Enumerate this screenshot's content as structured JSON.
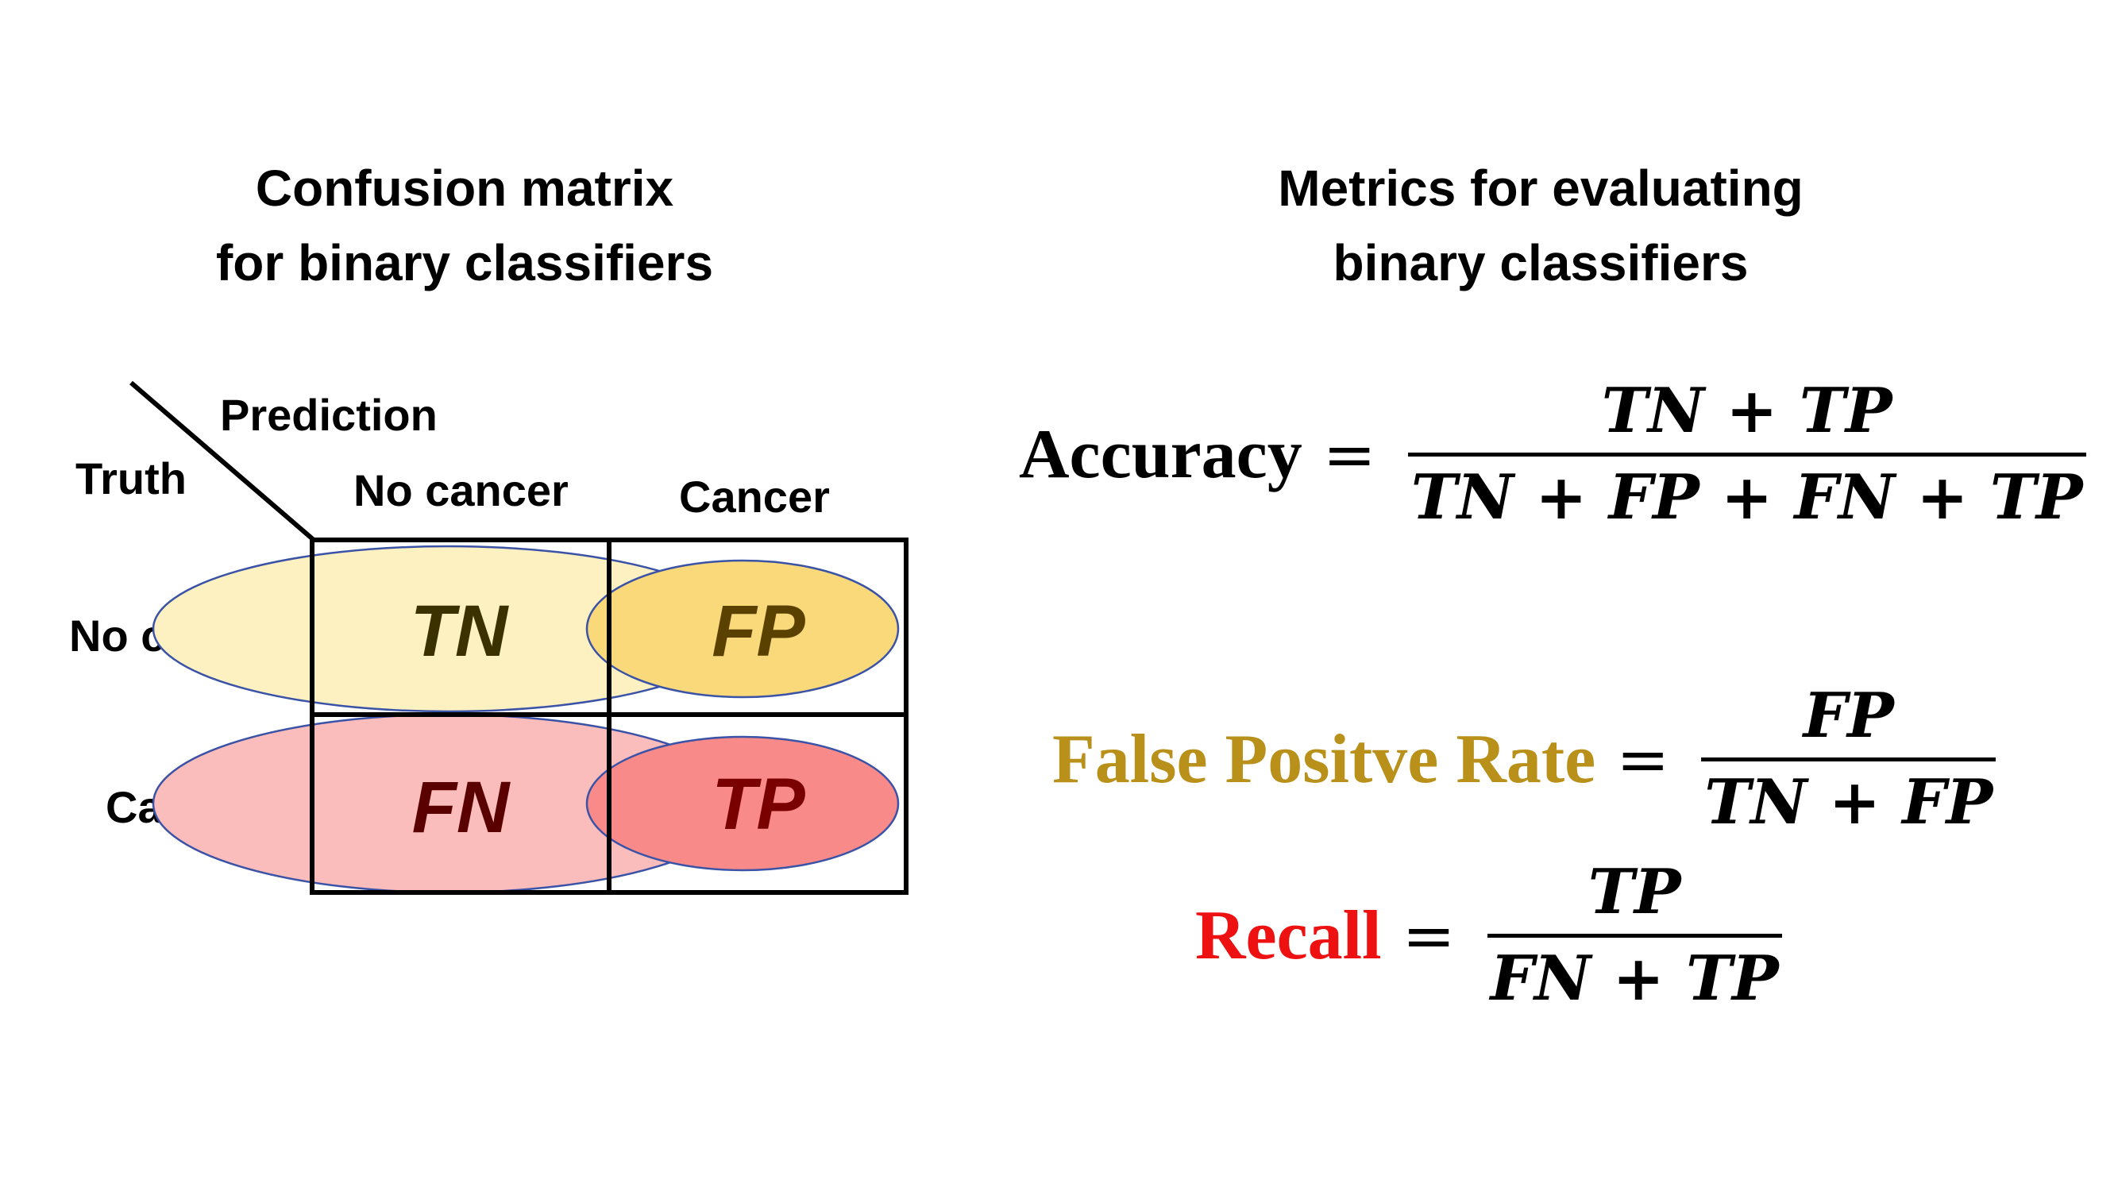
{
  "left_title": {
    "line1": "Confusion matrix",
    "line2": "for binary classifiers"
  },
  "right_title": {
    "line1": "Metrics for evaluating",
    "line2": "binary classifiers"
  },
  "matrix": {
    "corner_truth": "Truth",
    "corner_prediction": "Prediction",
    "col_headers": [
      "No cancer",
      "Cancer"
    ],
    "row_headers": [
      "No cancer",
      "Cancer"
    ],
    "cells": {
      "tn": "TN",
      "fp": "FP",
      "fn": "FN",
      "tp": "TP"
    }
  },
  "colors": {
    "tn_fill": "#fdf0c1",
    "fp_fill": "#f9d97a",
    "fn_fill": "#fbbcbc",
    "tp_fill": "#f98a8a",
    "ellipse_stroke": "#3b53a6",
    "fpr_label": "#b8901a",
    "recall_label": "#ee1111",
    "tn_text": "#3b3000",
    "fp_text": "#5a4100",
    "fn_text": "#5a0000",
    "tp_text": "#7a0000"
  },
  "formulas": {
    "accuracy": {
      "name": "Accuracy",
      "equals": "=",
      "numerator": "TN + TP",
      "denominator": "TN + FP + FN + TP"
    },
    "fpr": {
      "name": "False Positve Rate",
      "equals": "=",
      "numerator": "FP",
      "denominator": "TN + FP"
    },
    "recall": {
      "name": "Recall",
      "equals": "=",
      "numerator": "TP",
      "denominator": "FN + TP"
    }
  }
}
